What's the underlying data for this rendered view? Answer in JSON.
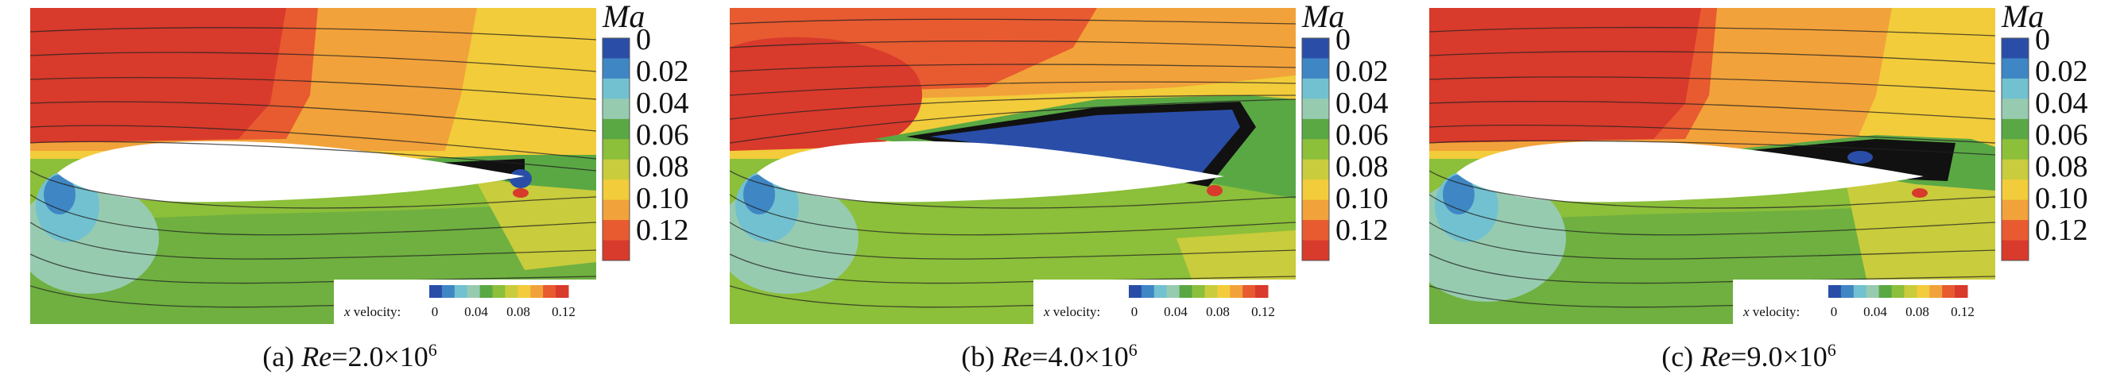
{
  "colorbar": {
    "title": "Ma",
    "ticks": [
      "0",
      "0.02",
      "0.04",
      "0.06",
      "0.08",
      "0.10",
      "0.12"
    ],
    "colors": [
      "#2a4ea8",
      "#3f86c4",
      "#72c1d0",
      "#97cbb0",
      "#5aa844",
      "#8cbf3a",
      "#c9cc3c",
      "#f2cc3a",
      "#f2a23a",
      "#e85a30",
      "#d83a2c"
    ]
  },
  "legend": {
    "label": "velocity:",
    "label_var": "x",
    "ticks": [
      "0",
      "0.04",
      "0.08",
      "0.12"
    ]
  },
  "panels": [
    {
      "tag": "(a) ",
      "re_symbol": "Re",
      "value": "=2.0×10",
      "exponent": "6"
    },
    {
      "tag": "(b) ",
      "re_symbol": "Re",
      "value": "=4.0×10",
      "exponent": "6"
    },
    {
      "tag": "(c) ",
      "re_symbol": "Re",
      "value": "=9.0×10",
      "exponent": "6"
    }
  ]
}
